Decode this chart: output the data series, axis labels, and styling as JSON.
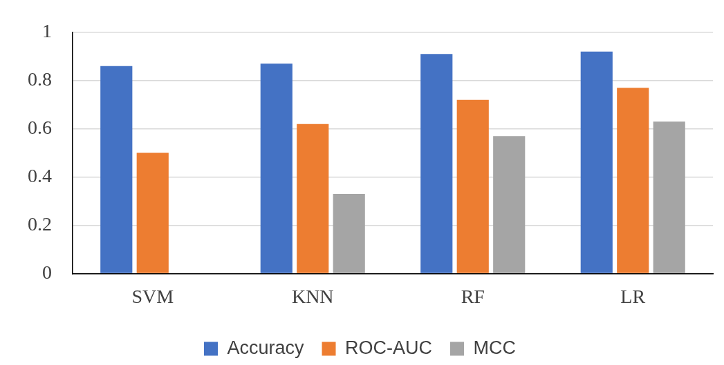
{
  "chart_data": {
    "type": "bar",
    "categories": [
      "SVM",
      "KNN",
      "RF",
      "LR"
    ],
    "series": [
      {
        "name": "Accuracy",
        "color": "#4472c4",
        "values": [
          0.86,
          0.87,
          0.91,
          0.92
        ]
      },
      {
        "name": "ROC-AUC",
        "color": "#ed7d31",
        "values": [
          0.5,
          0.62,
          0.72,
          0.77
        ]
      },
      {
        "name": "MCC",
        "color": "#a5a5a5",
        "values": [
          0,
          0.33,
          0.57,
          0.63
        ]
      }
    ],
    "ylim": [
      0,
      1
    ],
    "yticks": [
      0,
      0.2,
      0.4,
      0.6,
      0.8,
      1
    ],
    "grid": "y",
    "legend": "bottom"
  }
}
